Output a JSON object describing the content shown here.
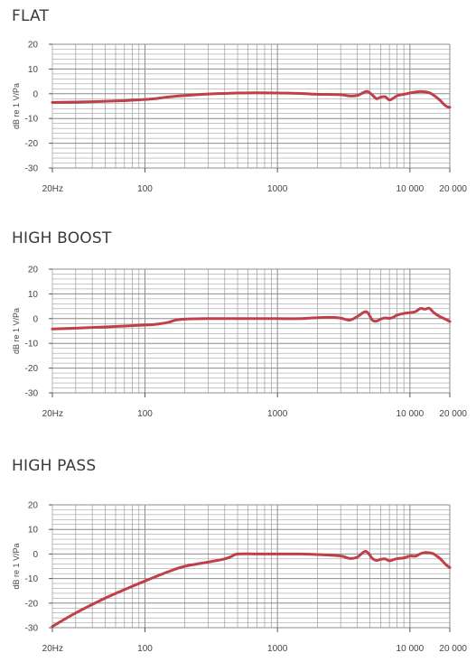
{
  "colors": {
    "curve": "#c0404a",
    "grid": "#8c8c8c",
    "text": "#3a3a3a"
  },
  "chart_data": [
    {
      "type": "line",
      "title": "FLAT",
      "ylabel": "dB re 1 V/Pa",
      "xscale": "log",
      "xlim": [
        20,
        20000
      ],
      "ylim": [
        -30,
        20
      ],
      "grid": true,
      "xticks": [
        20,
        100,
        1000,
        10000,
        20000
      ],
      "xtick_labels": [
        "20Hz",
        "100",
        "1000",
        "10 000",
        "20 000"
      ],
      "yticks": [
        20,
        10,
        0,
        -10,
        -20,
        -30
      ],
      "ytick_labels": [
        "20",
        "10",
        "0",
        "-10",
        "-20",
        "-30"
      ],
      "series": [
        {
          "x": [
            20,
            40,
            70,
            100,
            120,
            150,
            200,
            300,
            500,
            700,
            1000,
            1500,
            2000,
            3000,
            3500,
            4000,
            4500,
            4800,
            5200,
            5600,
            6000,
            6500,
            7000,
            7500,
            8000,
            9000,
            10000,
            11000,
            12000,
            13000,
            14000,
            15000,
            16000,
            17000,
            18000,
            19000,
            20000
          ],
          "y": [
            -3.5,
            -3.2,
            -2.8,
            -2.3,
            -2.0,
            -1.3,
            -0.7,
            -0.1,
            0.3,
            0.4,
            0.3,
            0.1,
            -0.2,
            -0.4,
            -0.9,
            -0.7,
            0.6,
            0.9,
            -0.5,
            -2.0,
            -1.4,
            -1.2,
            -2.5,
            -1.8,
            -0.8,
            -0.2,
            0.3,
            0.7,
            0.9,
            0.8,
            0.4,
            -0.5,
            -1.6,
            -2.8,
            -4.2,
            -5.2,
            -5.5
          ]
        }
      ]
    },
    {
      "type": "line",
      "title": "HIGH BOOST",
      "ylabel": "dB re 1 V/Pa",
      "xscale": "log",
      "xlim": [
        20,
        20000
      ],
      "ylim": [
        -30,
        20
      ],
      "grid": true,
      "xticks": [
        20,
        100,
        1000,
        10000,
        20000
      ],
      "xtick_labels": [
        "20Hz",
        "100",
        "1000",
        "10 000",
        "20 000"
      ],
      "yticks": [
        20,
        10,
        0,
        -10,
        -20,
        -30
      ],
      "ytick_labels": [
        "20",
        "10",
        "0",
        "-10",
        "-20",
        "-30"
      ],
      "series": [
        {
          "x": [
            20,
            40,
            70,
            100,
            120,
            150,
            170,
            200,
            300,
            500,
            700,
            1000,
            1500,
            2000,
            2500,
            3000,
            3500,
            4000,
            4500,
            4800,
            5200,
            5600,
            6000,
            6500,
            7000,
            7500,
            8000,
            9000,
            10000,
            11000,
            12000,
            13000,
            14000,
            15000,
            16000,
            17000,
            18000,
            19000,
            20000
          ],
          "y": [
            -4.2,
            -3.6,
            -3.0,
            -2.6,
            -2.3,
            -1.5,
            -0.6,
            -0.2,
            0.0,
            0.0,
            0.0,
            0.0,
            0.0,
            0.4,
            0.5,
            0.2,
            -0.6,
            0.8,
            2.6,
            2.4,
            -0.6,
            -1.0,
            -0.2,
            0.3,
            0.1,
            0.6,
            1.4,
            2.1,
            2.4,
            2.8,
            4.1,
            3.8,
            4.2,
            2.6,
            1.5,
            0.7,
            0.1,
            -0.5,
            -1.2
          ]
        }
      ]
    },
    {
      "type": "line",
      "title": "HIGH PASS",
      "ylabel": "dB re 1 V/Pa",
      "xscale": "log",
      "xlim": [
        20,
        20000
      ],
      "ylim": [
        -30,
        20
      ],
      "grid": true,
      "xticks": [
        20,
        100,
        1000,
        10000,
        20000
      ],
      "xtick_labels": [
        "20Hz",
        "100",
        "1000",
        "10 000",
        "20 000"
      ],
      "yticks": [
        20,
        10,
        0,
        -10,
        -20,
        -30
      ],
      "ytick_labels": [
        "20",
        "10",
        "0",
        "-10",
        "-20",
        "-30"
      ],
      "series": [
        {
          "x": [
            20,
            30,
            50,
            70,
            100,
            150,
            200,
            300,
            400,
            450,
            500,
            700,
            1000,
            1500,
            2000,
            3000,
            3500,
            4000,
            4500,
            4800,
            5200,
            5600,
            6000,
            6500,
            7000,
            7500,
            8000,
            9000,
            10000,
            11000,
            12000,
            13000,
            14000,
            15000,
            16000,
            17000,
            18000,
            19000,
            20000
          ],
          "y": [
            -29.5,
            -24.0,
            -18.0,
            -14.5,
            -11.0,
            -7.2,
            -5.0,
            -3.3,
            -2.0,
            -1.0,
            0.0,
            0.0,
            0.0,
            0.0,
            -0.2,
            -0.8,
            -1.8,
            -1.3,
            0.9,
            0.6,
            -1.8,
            -2.6,
            -2.2,
            -2.0,
            -2.8,
            -2.3,
            -1.9,
            -1.6,
            -0.8,
            -0.9,
            0.1,
            0.6,
            0.5,
            0.1,
            -0.9,
            -2.0,
            -3.4,
            -4.7,
            -5.5
          ]
        }
      ]
    }
  ]
}
